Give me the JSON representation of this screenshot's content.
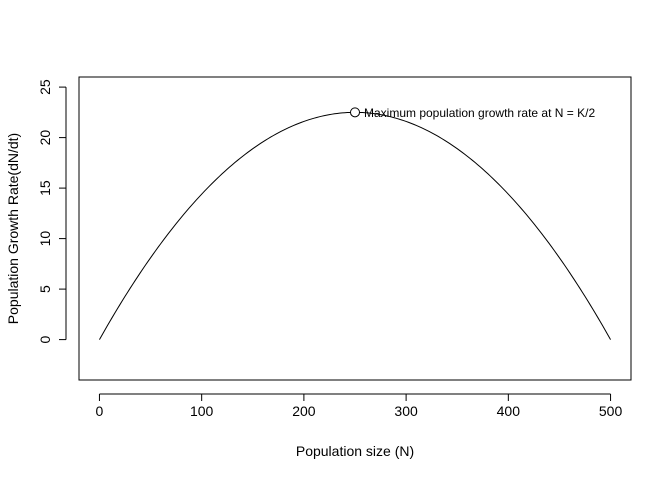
{
  "chart_data": {
    "type": "line",
    "title": "",
    "xlabel": "Population size (N)",
    "ylabel": "Population Growth Rate(dN/dt)",
    "xlim": [
      -20,
      520
    ],
    "ylim": [
      -4,
      26
    ],
    "x_ticks": [
      0,
      100,
      200,
      300,
      400,
      500
    ],
    "y_ticks": [
      0,
      5,
      10,
      15,
      20,
      25
    ],
    "grid": false,
    "curve": {
      "r": 0.18,
      "K": 500,
      "x_start": 0,
      "x_end": 500,
      "samples": [
        {
          "x": 0,
          "y": 0
        },
        {
          "x": 50,
          "y": 8.1
        },
        {
          "x": 100,
          "y": 14.4
        },
        {
          "x": 150,
          "y": 18.9
        },
        {
          "x": 200,
          "y": 21.6
        },
        {
          "x": 250,
          "y": 22.5
        },
        {
          "x": 300,
          "y": 21.6
        },
        {
          "x": 350,
          "y": 18.9
        },
        {
          "x": 400,
          "y": 14.4
        },
        {
          "x": 450,
          "y": 8.1
        },
        {
          "x": 500,
          "y": 0
        }
      ]
    },
    "annotation": {
      "x": 250,
      "y": 22.5,
      "text": "Maximum population growth rate at N = K/2"
    },
    "line_color": "#000000"
  }
}
